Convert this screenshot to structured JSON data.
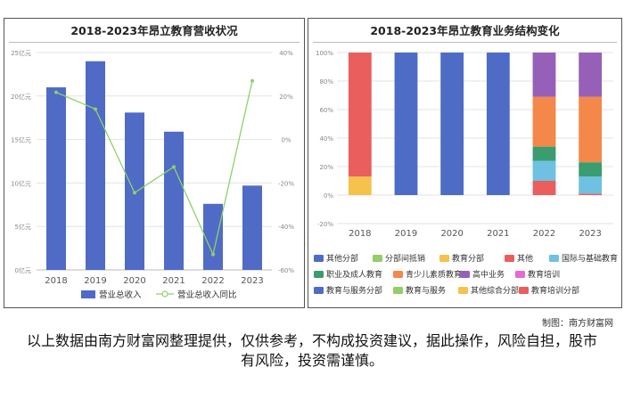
{
  "watermark": "南方财富网",
  "credit": "制图：南方财富网",
  "disclaimer": "以上数据由南方财富网整理提供，仅供参考，不构成投资建议，据此操作，风险自担，股市有风险，投资需谨慎。",
  "chart_data": [
    {
      "type": "bar",
      "title": "2018-2023年昂立教育营收状况",
      "categories": [
        "2018",
        "2019",
        "2020",
        "2021",
        "2022",
        "2023"
      ],
      "y_left_ticks": [
        "0亿元",
        "5亿元",
        "10亿元",
        "15亿元",
        "20亿元",
        "25亿元"
      ],
      "y_left_lim": [
        0,
        25
      ],
      "y_right_ticks": [
        "-60%",
        "-40%",
        "-20%",
        "0%",
        "20%",
        "40%"
      ],
      "y_right_lim": [
        -60,
        40
      ],
      "series": [
        {
          "name": "营业总收入",
          "kind": "bar",
          "axis": "left",
          "color": "#4F6BC6",
          "values": [
            21.0,
            24.0,
            18.1,
            15.9,
            7.6,
            9.7
          ]
        },
        {
          "name": "营业总收入同比",
          "kind": "line",
          "axis": "right",
          "color": "#8ED16A",
          "values": [
            21.7,
            14.0,
            -24.5,
            -12.6,
            -52.9,
            27.0
          ]
        }
      ],
      "legend_position": "bottom"
    },
    {
      "type": "bar",
      "stacked": true,
      "title": "2018-2023年昂立教育业务结构变化",
      "categories": [
        "2018",
        "2019",
        "2020",
        "2021",
        "2022",
        "2023"
      ],
      "y_ticks": [
        "-20%",
        "0%",
        "20%",
        "40%",
        "60%",
        "80%",
        "100%"
      ],
      "ylim": [
        -20,
        100
      ],
      "series": [
        {
          "name": "其他分部",
          "color": "#4E6CC6",
          "values": [
            0,
            0,
            0,
            0,
            0,
            0
          ]
        },
        {
          "name": "分部间抵销",
          "color": "#93CE68",
          "values": [
            0,
            0,
            0,
            0,
            0,
            0
          ]
        },
        {
          "name": "教育分部",
          "color": "#F5C24B",
          "values": [
            13,
            0,
            0,
            0,
            0,
            0
          ]
        },
        {
          "name": "其他",
          "color": "#EA5E5E",
          "values": [
            0,
            0,
            0,
            0,
            10,
            1
          ]
        },
        {
          "name": "国际与基础教育",
          "color": "#6EC1E1",
          "values": [
            0,
            0,
            0,
            0,
            14,
            12
          ]
        },
        {
          "name": "职业及成人教育",
          "color": "#3A9D6F",
          "values": [
            0,
            0,
            0,
            0,
            10,
            10
          ]
        },
        {
          "name": "青少儿素质教育",
          "color": "#F4874A",
          "values": [
            0,
            0,
            0,
            0,
            35,
            46
          ]
        },
        {
          "name": "高中业务",
          "color": "#9660B8",
          "values": [
            0,
            0,
            0,
            0,
            31,
            31
          ]
        },
        {
          "name": "教育培训",
          "color": "#E56BD2",
          "values": [
            0,
            0,
            0,
            0,
            0,
            0
          ]
        },
        {
          "name": "教育与服务分部",
          "color": "#4E6CC6",
          "values": [
            0,
            100,
            100,
            100,
            0,
            0
          ]
        },
        {
          "name": "教育与服务",
          "color": "#93CE68",
          "values": [
            0,
            0,
            0,
            0,
            0,
            0
          ]
        },
        {
          "name": "其他综合分部",
          "color": "#F5C24B",
          "values": [
            0,
            0,
            0,
            0,
            0,
            0
          ]
        },
        {
          "name": "教育培训分部",
          "color": "#EA5E5E",
          "values": [
            87,
            0,
            0,
            0,
            0,
            0
          ]
        }
      ],
      "legend_position": "bottom"
    }
  ]
}
